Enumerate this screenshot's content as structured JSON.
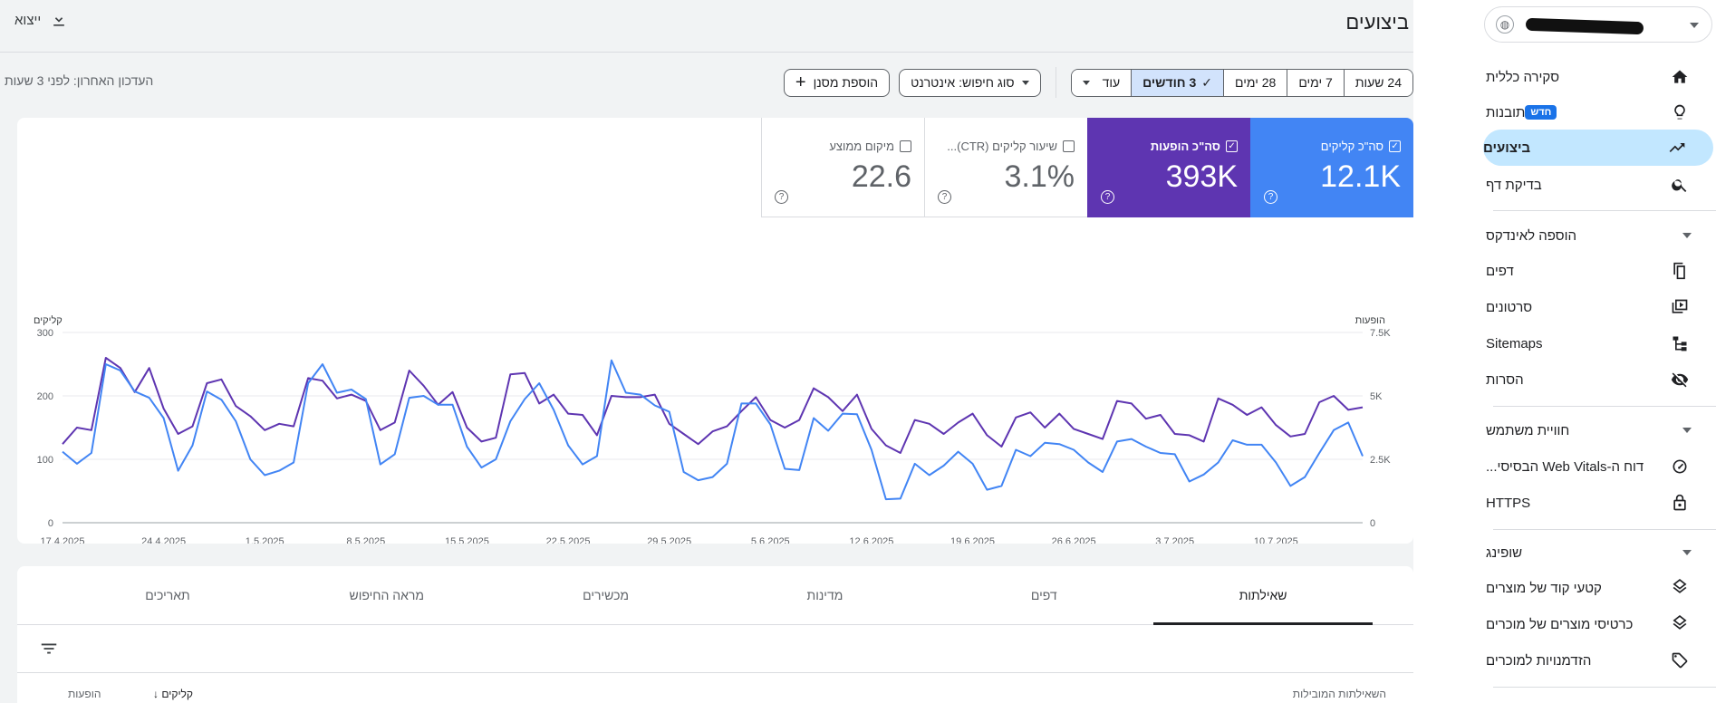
{
  "header": {
    "title": "ביצועים",
    "export_label": "ייצוא"
  },
  "filters": {
    "date_ranges": [
      "24 שעות",
      "7 ימים",
      "28 ימים",
      "3 חודשים",
      "עוד"
    ],
    "selected_range": "3 חודשים",
    "search_type_label": "סוג חיפוש: אינטרנט",
    "add_filter_label": "הוספת מסנן",
    "last_updated": "העדכון האחרון: לפני 3 שעות"
  },
  "metrics": [
    {
      "label": "סה\"כ קליקים",
      "value": "12.1K",
      "checked": true
    },
    {
      "label": "סה\"כ הופעות",
      "value": "393K",
      "checked": true
    },
    {
      "label": "שיעור קליקים (CTR)...",
      "value": "3.1%",
      "checked": false
    },
    {
      "label": "מיקום ממוצע",
      "value": "22.6",
      "checked": false
    }
  ],
  "colors": {
    "clicks": "#4285f4",
    "impressions": "#5e35b1"
  },
  "chart_data": {
    "type": "line",
    "left_axis_label": "קליקים",
    "right_axis_label": "הופעות",
    "left_ticks": [
      "300",
      "200",
      "100",
      "0"
    ],
    "right_ticks": [
      "7.5K",
      "5K",
      "2.5K",
      "0"
    ],
    "ylim_left": [
      0,
      300
    ],
    "ylim_right": [
      0,
      7500
    ],
    "x_ticks": [
      "17.4.2025",
      "24.4.2025",
      "1.5.2025",
      "8.5.2025",
      "15.5.2025",
      "22.5.2025",
      "29.5.2025",
      "5.6.2025",
      "12.6.2025",
      "19.6.2025",
      "26.6.2025",
      "3.7.2025",
      "10.7.2025"
    ],
    "series": [
      {
        "name": "קליקים",
        "color": "#4285f4",
        "values": [
          112,
          93,
          110,
          250,
          240,
          207,
          197,
          165,
          82,
          122,
          207,
          194,
          160,
          100,
          75,
          82,
          95,
          220,
          250,
          205,
          210,
          195,
          92,
          108,
          197,
          200,
          186,
          186,
          120,
          87,
          100,
          160,
          195,
          220,
          178,
          122,
          92,
          105,
          256,
          205,
          202,
          185,
          175,
          80,
          67,
          72,
          93,
          188,
          188,
          155,
          85,
          83,
          165,
          145,
          172,
          171,
          115,
          37,
          38,
          93,
          75,
          90,
          112,
          93,
          52,
          58,
          115,
          105,
          126,
          124,
          115,
          95,
          80,
          128,
          132,
          120,
          110,
          108,
          65,
          76,
          95,
          130,
          123,
          123,
          95,
          58,
          72,
          110,
          146,
          158,
          105
        ]
      },
      {
        "name": "הופעות",
        "values": [
          3100,
          3750,
          3650,
          6500,
          6100,
          5150,
          6100,
          4500,
          3500,
          3800,
          5500,
          5650,
          4600,
          4200,
          3650,
          3900,
          3800,
          5700,
          5600,
          4900,
          5050,
          4800,
          3650,
          3950,
          6000,
          5400,
          4650,
          5150,
          3750,
          3200,
          3350,
          5850,
          5900,
          4700,
          5050,
          4300,
          4250,
          3450,
          5000,
          4950,
          4950,
          5050,
          3900,
          3500,
          3100,
          3600,
          3800,
          4400,
          4950,
          4050,
          3750,
          4050,
          5300,
          4950,
          4400,
          5050,
          3700,
          3050,
          2750,
          4050,
          3900,
          3500,
          3950,
          4300,
          3450,
          3000,
          4150,
          4350,
          3750,
          4300,
          3700,
          3500,
          3300,
          4800,
          4700,
          4100,
          4250,
          3500,
          3450,
          3200,
          4900,
          4650,
          4250,
          4550,
          3850,
          3400,
          3500,
          4750,
          5000,
          4450,
          4550
        ]
      }
    ]
  },
  "tabs": [
    "שאילתות",
    "דפים",
    "מדינות",
    "מכשירים",
    "מראה החיפוש",
    "תאריכים"
  ],
  "table": {
    "col_query": "השאילתות המובילות",
    "col_clicks": "קליקים",
    "col_impressions": "הופעות"
  },
  "sidebar": {
    "top_items": [
      {
        "label": "סקירה כללית",
        "icon": "home-icon"
      },
      {
        "label": "תובנות",
        "icon": "lightbulb-icon",
        "badge": "חדש"
      },
      {
        "label": "ביצועים",
        "icon": "trending-up-icon",
        "active": true
      },
      {
        "label": "בדיקת דף",
        "icon": "search-icon"
      }
    ],
    "section_index": {
      "title": "הוספה לאינדקס",
      "items": [
        {
          "label": "דפים",
          "icon": "pages-icon"
        },
        {
          "label": "סרטונים",
          "icon": "video-icon"
        },
        {
          "label": "Sitemaps",
          "icon": "sitemap-icon"
        },
        {
          "label": "הסרות",
          "icon": "eye-off-icon"
        }
      ]
    },
    "section_experience": {
      "title": "חוויית משתמש",
      "items": [
        {
          "label": "דוח ה-Web Vitals הבסיסי...",
          "icon": "gauge-icon"
        },
        {
          "label": "HTTPS",
          "icon": "lock-icon"
        }
      ]
    },
    "section_shopping": {
      "title": "שופינג",
      "items": [
        {
          "label": "קטעי קוד של מוצרים",
          "icon": "layers-icon"
        },
        {
          "label": "כרטיסי מוצרים של מוכרים",
          "icon": "layers-icon"
        },
        {
          "label": "הזדמנויות למוכרים",
          "icon": "tag-icon"
        }
      ]
    }
  }
}
